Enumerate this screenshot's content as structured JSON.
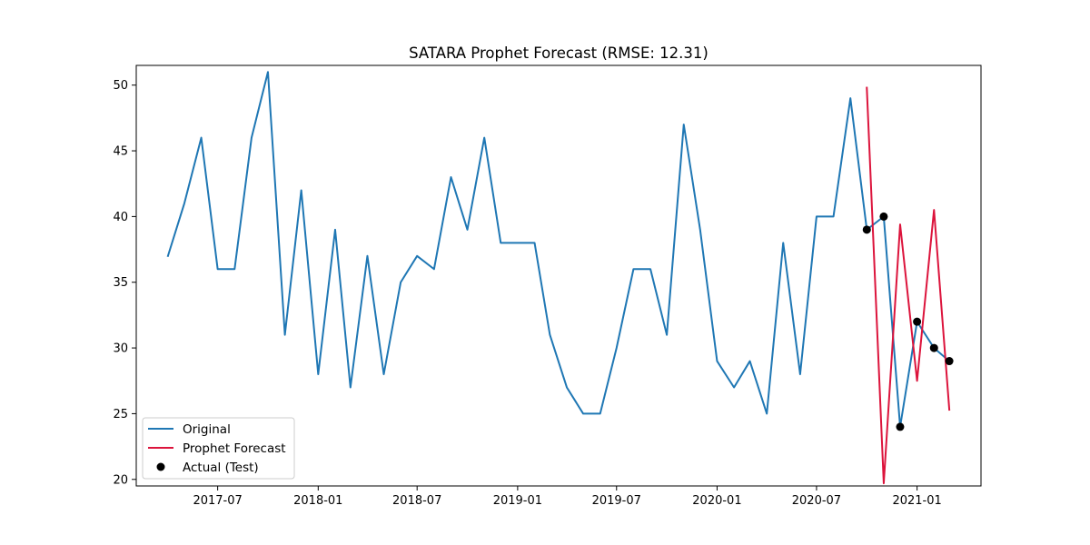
{
  "chart_data": {
    "type": "line",
    "title": "SATARA Prophet Forecast (RMSE: 12.31)",
    "xlabel": "",
    "ylabel": "",
    "ylim": [
      19.5,
      51.5
    ],
    "xlim": [
      "2017-02-02",
      "2021-04-28"
    ],
    "x_ticks": [
      "2017-07",
      "2018-01",
      "2018-07",
      "2019-01",
      "2019-07",
      "2020-01",
      "2020-07",
      "2021-01"
    ],
    "y_ticks": [
      20,
      25,
      30,
      35,
      40,
      45,
      50
    ],
    "grid": false,
    "legend_position": "lower-left",
    "series": [
      {
        "name": "Original",
        "kind": "line",
        "color": "#1f77b4",
        "x": [
          "2017-04",
          "2017-05",
          "2017-06",
          "2017-07",
          "2017-08",
          "2017-09",
          "2017-10",
          "2017-11",
          "2017-12",
          "2018-01",
          "2018-02",
          "2018-03",
          "2018-04",
          "2018-05",
          "2018-06",
          "2018-07",
          "2018-08",
          "2018-09",
          "2018-10",
          "2018-11",
          "2018-12",
          "2019-01",
          "2019-02",
          "2019-03",
          "2019-04",
          "2019-05",
          "2019-06",
          "2019-07",
          "2019-08",
          "2019-09",
          "2019-10",
          "2019-11",
          "2019-12",
          "2020-01",
          "2020-02",
          "2020-03",
          "2020-04",
          "2020-05",
          "2020-06",
          "2020-07",
          "2020-08",
          "2020-09",
          "2020-10",
          "2020-11",
          "2020-12",
          "2021-01",
          "2021-02",
          "2021-03"
        ],
        "y": [
          37,
          41,
          46,
          36,
          36,
          46,
          51,
          31,
          42,
          28,
          39,
          27,
          37,
          28,
          35,
          37,
          36,
          43,
          39,
          46,
          38,
          38,
          38,
          31,
          27,
          25,
          25,
          30,
          36,
          36,
          31,
          47,
          39,
          29,
          27,
          29,
          25,
          38,
          28,
          40,
          40,
          49,
          39,
          40,
          24,
          32,
          30,
          29
        ]
      },
      {
        "name": "Prophet Forecast",
        "kind": "line",
        "color": "#dc143c",
        "x": [
          "2020-10",
          "2020-11",
          "2020-12",
          "2021-01",
          "2021-02",
          "2021-03"
        ],
        "y": [
          49.8,
          19.7,
          39.4,
          27.5,
          40.5,
          25.3
        ]
      },
      {
        "name": "Actual (Test)",
        "kind": "scatter",
        "color": "#000000",
        "x": [
          "2020-10",
          "2020-11",
          "2020-12",
          "2021-01",
          "2021-02",
          "2021-03"
        ],
        "y": [
          39,
          40,
          24,
          32,
          30,
          29
        ]
      }
    ]
  }
}
